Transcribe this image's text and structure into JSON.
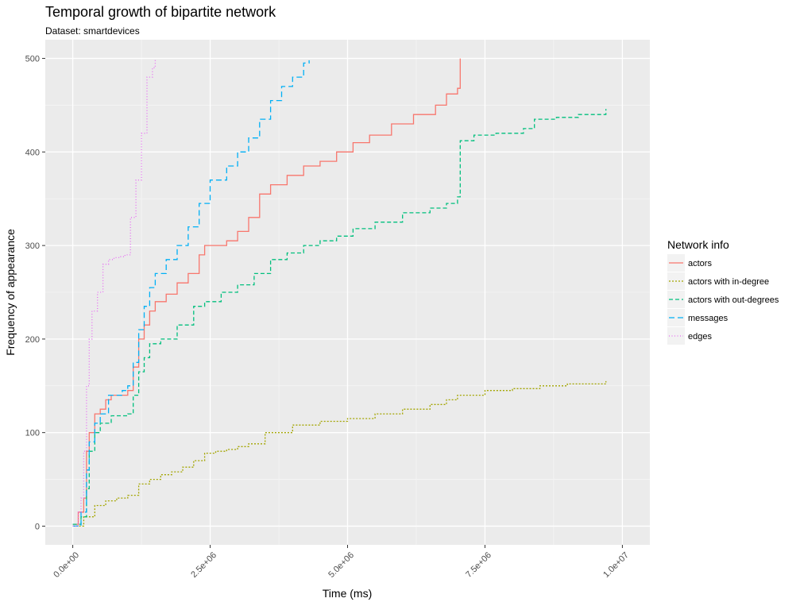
{
  "chart_data": {
    "type": "line",
    "title": "Temporal growth of bipartite network",
    "subtitle": "Dataset: smartdevices",
    "xlabel": "Time (ms)",
    "ylabel": "Frequency of appearance",
    "xlim": [
      -500000,
      10500000
    ],
    "ylim": [
      -20,
      520
    ],
    "x_ticks": [
      0,
      2500000,
      5000000,
      7500000,
      10000000
    ],
    "x_tick_labels": [
      "0.0e+00",
      "2.5e+06",
      "5.0e+06",
      "7.5e+06",
      "1.0e+07"
    ],
    "y_ticks": [
      0,
      100,
      200,
      300,
      400,
      500
    ],
    "y_tick_labels": [
      "0",
      "100",
      "200",
      "300",
      "400",
      "500"
    ],
    "grid": true,
    "panel_color": "#EBEBEB",
    "legend": {
      "title": "Network info",
      "position": "right"
    },
    "series": [
      {
        "name": "actors",
        "color": "#F8766D",
        "dash": "solid",
        "x": [
          0,
          100000,
          200000,
          250000,
          300000,
          400000,
          500000,
          600000,
          700000,
          800000,
          1000000,
          1100000,
          1200000,
          1300000,
          1400000,
          1500000,
          1700000,
          1900000,
          2100000,
          2300000,
          2400000,
          2500000,
          2800000,
          3000000,
          3200000,
          3400000,
          3600000,
          3900000,
          4200000,
          4500000,
          4800000,
          5100000,
          5400000,
          5800000,
          6200000,
          6600000,
          6800000,
          7000000,
          7050000,
          7050000
        ],
        "y": [
          2,
          15,
          30,
          80,
          100,
          120,
          125,
          135,
          140,
          140,
          145,
          170,
          200,
          215,
          230,
          240,
          248,
          260,
          270,
          290,
          300,
          300,
          305,
          315,
          330,
          355,
          365,
          375,
          385,
          390,
          400,
          410,
          418,
          430,
          440,
          450,
          462,
          468,
          468,
          500
        ]
      },
      {
        "name": "actors with in-degree",
        "color": "#A3A500",
        "dash": "dotted",
        "x": [
          0,
          200000,
          400000,
          600000,
          800000,
          1000000,
          1200000,
          1400000,
          1600000,
          1800000,
          2000000,
          2200000,
          2400000,
          2600000,
          2800000,
          3000000,
          3200000,
          3500000,
          4000000,
          4500000,
          5000000,
          5500000,
          6000000,
          6500000,
          6800000,
          7000000,
          7500000,
          8000000,
          8500000,
          9000000,
          9700000
        ],
        "y": [
          0,
          10,
          22,
          27,
          30,
          33,
          45,
          50,
          55,
          58,
          63,
          70,
          78,
          80,
          82,
          85,
          88,
          100,
          108,
          112,
          115,
          120,
          125,
          130,
          135,
          140,
          145,
          147,
          150,
          152,
          155
        ]
      },
      {
        "name": "actors with out-degrees",
        "color": "#00BF7D",
        "dash": "dashed",
        "x": [
          0,
          150000,
          250000,
          300000,
          400000,
          500000,
          700000,
          1000000,
          1100000,
          1200000,
          1300000,
          1400000,
          1600000,
          1900000,
          2200000,
          2400000,
          2700000,
          3000000,
          3300000,
          3600000,
          3900000,
          4200000,
          4500000,
          4800000,
          5100000,
          5500000,
          6000000,
          6500000,
          6800000,
          7000000,
          7050000,
          7050000,
          7300000,
          7700000,
          8200000,
          8400000,
          8800000,
          9200000,
          9700000
        ],
        "y": [
          2,
          10,
          40,
          80,
          100,
          110,
          118,
          120,
          140,
          165,
          180,
          195,
          200,
          215,
          235,
          240,
          250,
          258,
          270,
          285,
          292,
          300,
          305,
          310,
          318,
          325,
          335,
          340,
          345,
          352,
          355,
          412,
          418,
          420,
          425,
          435,
          437,
          440,
          446
        ]
      },
      {
        "name": "messages",
        "color": "#00B0F6",
        "dash": "longdash",
        "x": [
          0,
          150000,
          250000,
          300000,
          400000,
          500000,
          650000,
          900000,
          1000000,
          1100000,
          1200000,
          1300000,
          1400000,
          1500000,
          1700000,
          1900000,
          2100000,
          2300000,
          2500000,
          2800000,
          3000000,
          3200000,
          3400000,
          3600000,
          3800000,
          4000000,
          4200000,
          4300000
        ],
        "y": [
          0,
          15,
          60,
          90,
          110,
          120,
          140,
          145,
          150,
          175,
          210,
          235,
          255,
          270,
          285,
          300,
          320,
          345,
          370,
          385,
          400,
          415,
          435,
          455,
          470,
          480,
          495,
          498
        ]
      },
      {
        "name": "edges",
        "color": "#E76BF3",
        "dash": "dotted-fine",
        "x": [
          0,
          100000,
          150000,
          200000,
          250000,
          300000,
          350000,
          450000,
          550000,
          650000,
          750000,
          850000,
          950000,
          1050000,
          1150000,
          1250000,
          1350000,
          1450000,
          1500000
        ],
        "y": [
          0,
          15,
          30,
          80,
          150,
          200,
          230,
          250,
          280,
          285,
          287,
          288,
          290,
          330,
          370,
          420,
          480,
          490,
          500
        ]
      }
    ]
  }
}
